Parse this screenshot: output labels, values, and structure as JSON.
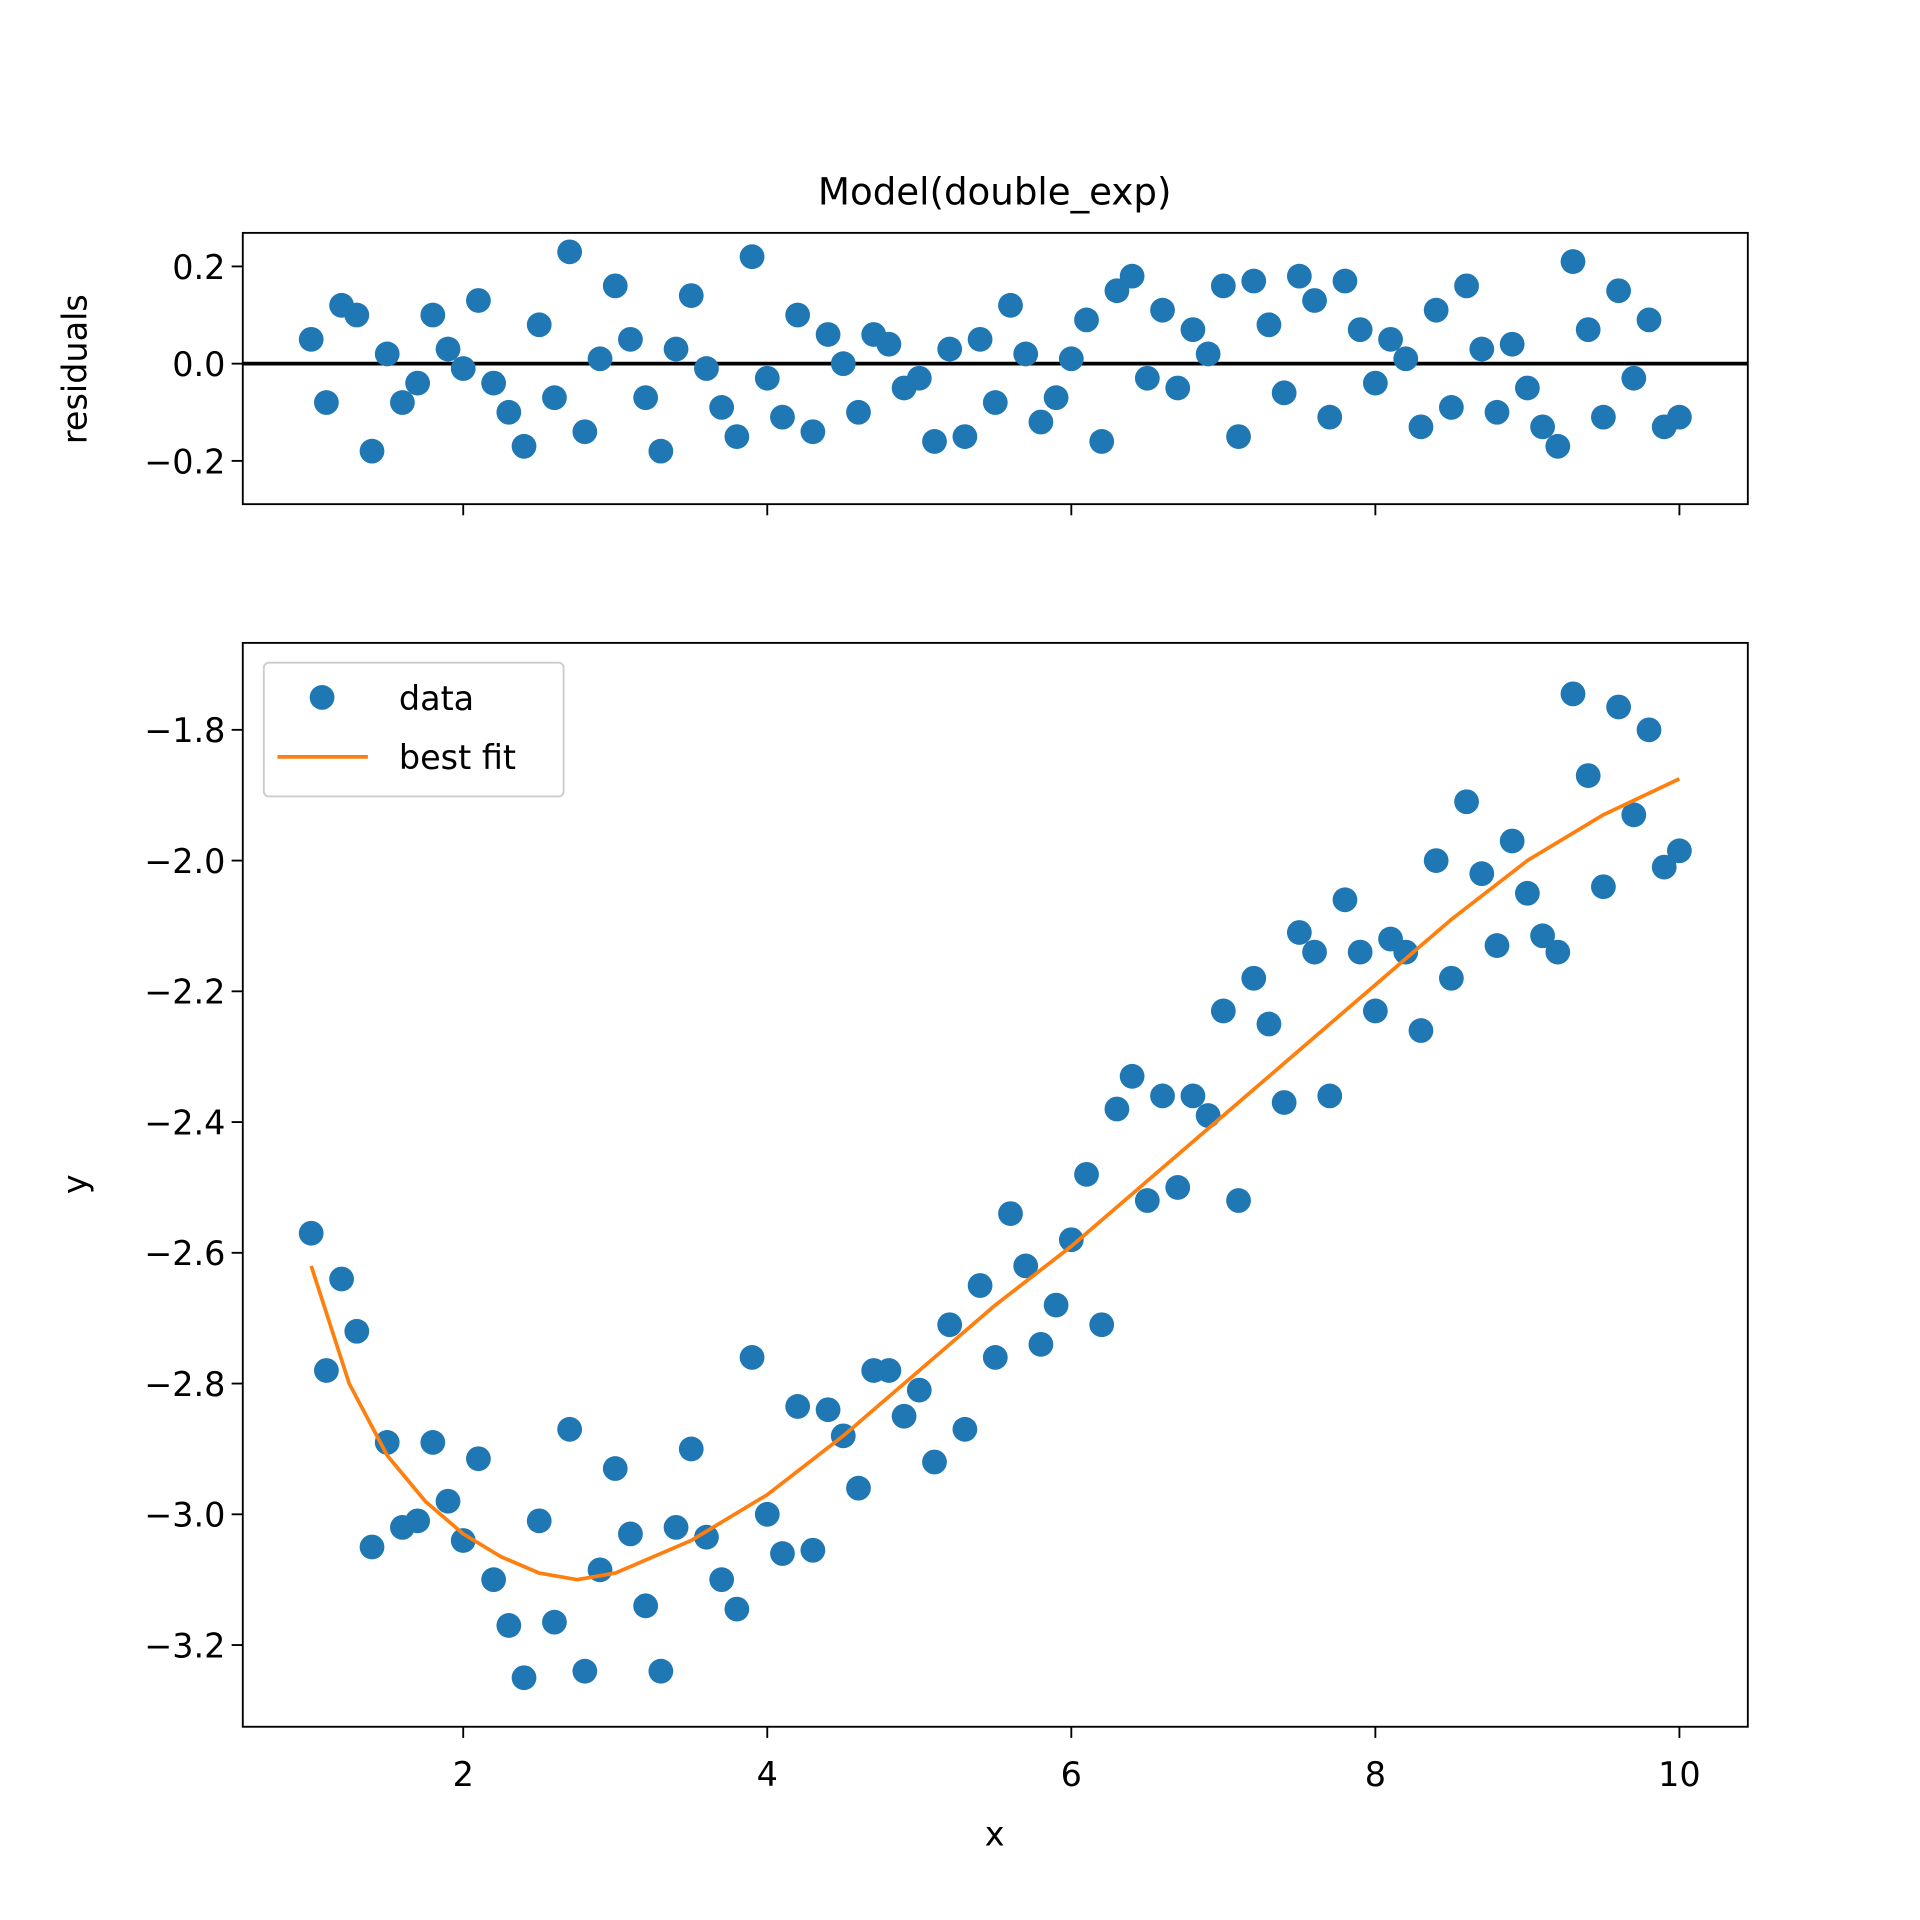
{
  "chart_data": [
    {
      "type": "scatter",
      "title": "Model(double_exp)",
      "ylabel": "residuals",
      "color": "#1f77b4",
      "x": [
        1.0,
        1.1,
        1.2,
        1.3,
        1.4,
        1.5,
        1.6,
        1.7,
        1.8,
        1.9,
        2.0,
        2.1,
        2.2,
        2.3,
        2.4,
        2.5,
        2.6,
        2.7,
        2.8,
        2.9,
        3.0,
        3.1,
        3.2,
        3.3,
        3.4,
        3.5,
        3.6,
        3.7,
        3.8,
        3.9,
        4.0,
        4.1,
        4.2,
        4.3,
        4.4,
        4.5,
        4.6,
        4.7,
        4.8,
        4.9,
        5.0,
        5.1,
        5.2,
        5.3,
        5.4,
        5.5,
        5.6,
        5.7,
        5.8,
        5.9,
        6.0,
        6.1,
        6.2,
        6.3,
        6.4,
        6.5,
        6.6,
        6.7,
        6.8,
        6.9,
        7.0,
        7.1,
        7.2,
        7.3,
        7.4,
        7.5,
        7.6,
        7.7,
        7.8,
        7.9,
        8.0,
        8.1,
        8.2,
        8.3,
        8.4,
        8.5,
        8.6,
        8.7,
        8.8,
        8.9,
        9.0,
        9.1,
        9.2,
        9.3,
        9.4,
        9.5,
        9.6,
        9.7,
        9.8,
        9.9,
        10.0
      ],
      "values": [
        0.05,
        -0.08,
        0.12,
        0.1,
        -0.18,
        0.02,
        -0.08,
        -0.04,
        0.1,
        0.03,
        -0.01,
        0.13,
        -0.04,
        -0.1,
        -0.17,
        0.08,
        -0.07,
        0.23,
        -0.14,
        0.01,
        0.16,
        0.05,
        -0.07,
        -0.18,
        0.03,
        0.14,
        -0.01,
        -0.09,
        -0.15,
        0.22,
        -0.03,
        -0.11,
        0.1,
        -0.14,
        0.06,
        0.0,
        -0.1,
        0.06,
        0.04,
        -0.05,
        -0.03,
        -0.16,
        0.03,
        -0.15,
        0.05,
        -0.08,
        0.12,
        0.02,
        -0.12,
        -0.07,
        0.01,
        0.09,
        -0.16,
        0.15,
        0.18,
        -0.03,
        0.11,
        -0.05,
        0.07,
        0.02,
        0.16,
        -0.15,
        0.17,
        0.08,
        -0.06,
        0.18,
        0.13,
        -0.11,
        0.17,
        0.07,
        -0.04,
        0.05,
        0.01,
        -0.13,
        0.11,
        -0.09,
        0.16,
        0.03,
        -0.1,
        0.04,
        -0.05,
        -0.13,
        -0.17,
        0.21,
        0.07,
        -0.11,
        0.15,
        -0.03,
        0.09,
        -0.13,
        -0.11
      ],
      "hline": 0,
      "xlim": [
        0.55,
        10.45
      ],
      "ylim": [
        -0.289,
        0.269
      ],
      "yticks": [
        {
          "value": -0.2,
          "label": "−0.2"
        },
        {
          "value": 0,
          "label": "0.0"
        },
        0.2
      ]
    },
    {
      "type": "scatter",
      "xlabel": "x",
      "ylabel": "y",
      "legend": "upper left",
      "series": [
        {
          "name": "data",
          "kind": "scatter",
          "color": "#1f77b4",
          "x": [
            1.0,
            1.1,
            1.2,
            1.3,
            1.4,
            1.5,
            1.6,
            1.7,
            1.8,
            1.9,
            2.0,
            2.1,
            2.2,
            2.3,
            2.4,
            2.5,
            2.6,
            2.7,
            2.8,
            2.9,
            3.0,
            3.1,
            3.2,
            3.3,
            3.4,
            3.5,
            3.6,
            3.7,
            3.8,
            3.9,
            4.0,
            4.1,
            4.2,
            4.3,
            4.4,
            4.5,
            4.6,
            4.7,
            4.8,
            4.9,
            5.0,
            5.1,
            5.2,
            5.3,
            5.4,
            5.5,
            5.6,
            5.7,
            5.8,
            5.9,
            6.0,
            6.1,
            6.2,
            6.3,
            6.4,
            6.5,
            6.6,
            6.7,
            6.8,
            6.9,
            7.0,
            7.1,
            7.2,
            7.3,
            7.4,
            7.5,
            7.6,
            7.7,
            7.8,
            7.9,
            8.0,
            8.1,
            8.2,
            8.3,
            8.4,
            8.5,
            8.6,
            8.7,
            8.8,
            8.9,
            9.0,
            9.1,
            9.2,
            9.3,
            9.4,
            9.5,
            9.6,
            9.7,
            9.8,
            9.9,
            10.0
          ],
          "values": [
            -2.57,
            -2.78,
            -2.64,
            -2.72,
            -3.05,
            -2.89,
            -3.02,
            -3.01,
            -2.89,
            -2.98,
            -3.04,
            -2.915,
            -3.1,
            -3.17,
            -3.25,
            -3.01,
            -3.165,
            -2.87,
            -3.24,
            -3.085,
            -2.93,
            -3.03,
            -3.14,
            -3.24,
            -3.02,
            -2.9,
            -3.035,
            -3.1,
            -3.145,
            -2.76,
            -3.0,
            -3.06,
            -2.835,
            -3.055,
            -2.84,
            -2.88,
            -2.96,
            -2.78,
            -2.78,
            -2.85,
            -2.81,
            -2.92,
            -2.71,
            -2.87,
            -2.65,
            -2.76,
            -2.54,
            -2.62,
            -2.74,
            -2.68,
            -2.58,
            -2.48,
            -2.71,
            -2.38,
            -2.33,
            -2.52,
            -2.36,
            -2.5,
            -2.36,
            -2.39,
            -2.23,
            -2.52,
            -2.18,
            -2.25,
            -2.37,
            -2.11,
            -2.14,
            -2.36,
            -2.06,
            -2.14,
            -2.23,
            -2.12,
            -2.14,
            -2.26,
            -2.0,
            -2.18,
            -1.91,
            -2.02,
            -2.13,
            -1.97,
            -2.05,
            -2.115,
            -2.14,
            -1.745,
            -1.87,
            -2.04,
            -1.765,
            -1.93,
            -1.8,
            -2.01,
            -1.985
          ]
        },
        {
          "name": "best fit",
          "kind": "line",
          "color": "#ff7f0e",
          "x": [
            1.0,
            1.25,
            1.5,
            1.75,
            2.0,
            2.25,
            2.5,
            2.75,
            3.0,
            3.5,
            4.0,
            4.5,
            5.0,
            5.5,
            6.0,
            6.5,
            7.0,
            7.5,
            8.0,
            8.5,
            9.0,
            9.5,
            10.0
          ],
          "values": [
            -2.62,
            -2.8,
            -2.91,
            -2.98,
            -3.03,
            -3.065,
            -3.09,
            -3.1,
            -3.09,
            -3.04,
            -2.97,
            -2.88,
            -2.78,
            -2.68,
            -2.59,
            -2.49,
            -2.39,
            -2.29,
            -2.19,
            -2.09,
            -2.0,
            -1.93,
            -1.875
          ]
        }
      ],
      "xlim": [
        0.55,
        10.45
      ],
      "ylim": [
        -3.325,
        -1.667
      ],
      "xticks": [
        2,
        4,
        6,
        8,
        10
      ],
      "yticks": [
        {
          "value": -3.2,
          "label": "−3.2"
        },
        {
          "value": -3.0,
          "label": "−3.0"
        },
        {
          "value": -2.8,
          "label": "−2.8"
        },
        {
          "value": -2.6,
          "label": "−2.6"
        },
        {
          "value": -2.4,
          "label": "−2.4"
        },
        {
          "value": -2.2,
          "label": "−2.2"
        },
        {
          "value": -2.0,
          "label": "−2.0"
        },
        {
          "value": -1.8,
          "label": "−1.8"
        }
      ]
    }
  ]
}
